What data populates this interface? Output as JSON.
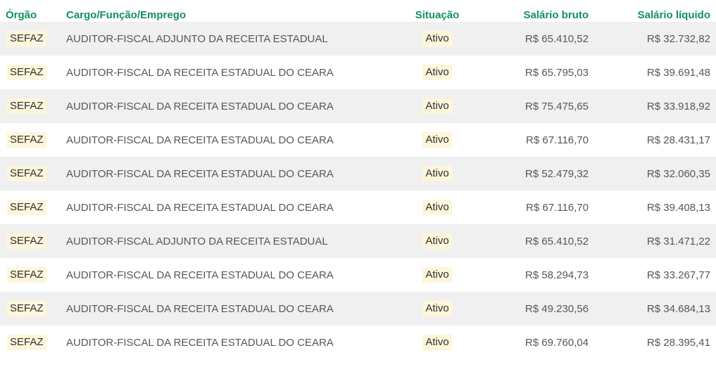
{
  "colors": {
    "header_text": "#11915a",
    "row_stripe": "#f0f0f0",
    "search_highlight_bg": "#fdf6da",
    "cell_text": "#54575c",
    "highlight_text": "#2f2f2f"
  },
  "table": {
    "columns": [
      {
        "key": "orgao",
        "label": "Órgão",
        "highlight": true
      },
      {
        "key": "cargo",
        "label": "Cargo/Função/Emprego",
        "highlight": false
      },
      {
        "key": "situacao",
        "label": "Situação",
        "highlight": true
      },
      {
        "key": "salario_bruto",
        "label": "Salário bruto",
        "highlight": false
      },
      {
        "key": "salario_liquido",
        "label": "Salário líquido",
        "highlight": false
      }
    ],
    "rows": [
      {
        "orgao": "SEFAZ",
        "cargo": "AUDITOR-FISCAL ADJUNTO DA RECEITA ESTADUAL",
        "situacao": "Ativo",
        "salario_bruto": "R$ 65.410,52",
        "salario_liquido": "R$ 32.732,82"
      },
      {
        "orgao": "SEFAZ",
        "cargo": "AUDITOR-FISCAL DA RECEITA ESTADUAL DO CEARA",
        "situacao": "Ativo",
        "salario_bruto": "R$ 65.795,03",
        "salario_liquido": "R$ 39.691,48"
      },
      {
        "orgao": "SEFAZ",
        "cargo": "AUDITOR-FISCAL DA RECEITA ESTADUAL DO CEARA",
        "situacao": "Ativo",
        "salario_bruto": "R$ 75.475,65",
        "salario_liquido": "R$ 33.918,92"
      },
      {
        "orgao": "SEFAZ",
        "cargo": "AUDITOR-FISCAL DA RECEITA ESTADUAL DO CEARA",
        "situacao": "Ativo",
        "salario_bruto": "R$ 67.116,70",
        "salario_liquido": "R$ 28.431,17"
      },
      {
        "orgao": "SEFAZ",
        "cargo": "AUDITOR-FISCAL DA RECEITA ESTADUAL DO CEARA",
        "situacao": "Ativo",
        "salario_bruto": "R$ 52.479,32",
        "salario_liquido": "R$ 32.060,35"
      },
      {
        "orgao": "SEFAZ",
        "cargo": "AUDITOR-FISCAL DA RECEITA ESTADUAL DO CEARA",
        "situacao": "Ativo",
        "salario_bruto": "R$ 67.116,70",
        "salario_liquido": "R$ 39.408,13"
      },
      {
        "orgao": "SEFAZ",
        "cargo": "AUDITOR-FISCAL ADJUNTO DA RECEITA ESTADUAL",
        "situacao": "Ativo",
        "salario_bruto": "R$ 65.410,52",
        "salario_liquido": "R$ 31.471,22"
      },
      {
        "orgao": "SEFAZ",
        "cargo": "AUDITOR-FISCAL DA RECEITA ESTADUAL DO CEARA",
        "situacao": "Ativo",
        "salario_bruto": "R$ 58.294,73",
        "salario_liquido": "R$ 33.267,77"
      },
      {
        "orgao": "SEFAZ",
        "cargo": "AUDITOR-FISCAL DA RECEITA ESTADUAL DO CEARA",
        "situacao": "Ativo",
        "salario_bruto": "R$ 49.230,56",
        "salario_liquido": "R$ 34.684,13"
      },
      {
        "orgao": "SEFAZ",
        "cargo": "AUDITOR-FISCAL DA RECEITA ESTADUAL DO CEARA",
        "situacao": "Ativo",
        "salario_bruto": "R$ 69.760,04",
        "salario_liquido": "R$ 28.395,41"
      }
    ]
  }
}
